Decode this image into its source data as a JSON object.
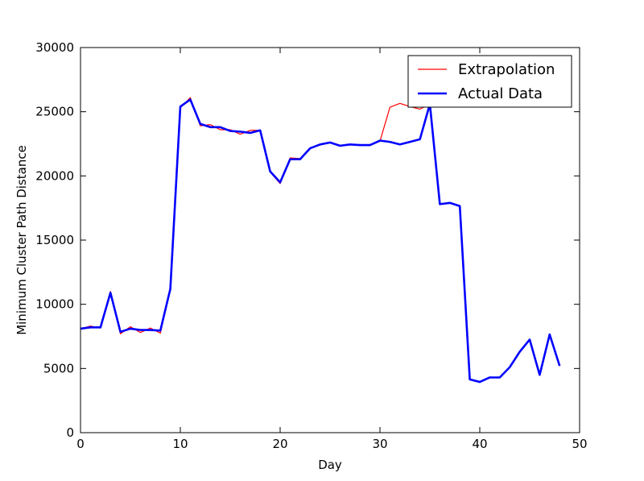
{
  "chart_data": {
    "type": "line",
    "title": "",
    "xlabel": "Day",
    "ylabel": "Minimum Cluster Path Distance",
    "xlim": [
      0,
      50
    ],
    "ylim": [
      0,
      30000
    ],
    "xticks": [
      0,
      10,
      20,
      30,
      40,
      50
    ],
    "yticks": [
      0,
      5000,
      10000,
      15000,
      20000,
      25000,
      30000
    ],
    "x_tick_labels": [
      "0",
      "10",
      "20",
      "30",
      "40",
      "50"
    ],
    "y_tick_labels": [
      "0",
      "5000",
      "10000",
      "15000",
      "20000",
      "25000",
      "30000"
    ],
    "grid": false,
    "legend_position": "top-right",
    "series": [
      {
        "name": "Extrapolation",
        "color": "#ff0000",
        "line_style": "thin",
        "x": [
          0,
          1,
          2,
          3,
          4,
          5,
          6,
          7,
          8,
          9,
          10,
          11,
          12,
          13,
          14,
          15,
          16,
          17,
          18,
          19,
          20,
          21,
          22,
          23,
          24,
          25,
          26,
          27,
          28,
          29,
          30,
          31,
          32,
          33,
          34,
          35,
          36,
          37,
          38,
          39,
          40,
          41,
          42,
          43,
          44,
          45,
          46,
          47,
          48
        ],
        "values": [
          8100,
          8300,
          8150,
          11000,
          7700,
          8250,
          7800,
          8150,
          7750,
          11200,
          25300,
          26100,
          23900,
          24000,
          23600,
          23600,
          23250,
          23550,
          23550,
          20300,
          19400,
          21400,
          21350,
          22150,
          22400,
          22600,
          22350,
          22450,
          22400,
          22400,
          22700,
          25350,
          25650,
          25400,
          25200,
          25600,
          17800,
          17900,
          17600,
          4150,
          3950,
          4300,
          4300,
          5100,
          6300,
          7250,
          4500,
          7650,
          5200
        ]
      },
      {
        "name": "Actual Data",
        "color": "#0000ff",
        "line_style": "thick",
        "x": [
          0,
          1,
          2,
          3,
          4,
          5,
          6,
          7,
          8,
          9,
          10,
          11,
          12,
          13,
          14,
          15,
          16,
          17,
          18,
          19,
          20,
          21,
          22,
          23,
          24,
          25,
          26,
          27,
          28,
          29,
          30,
          31,
          32,
          33,
          34,
          35,
          36,
          37,
          38,
          39,
          40,
          41,
          42,
          43,
          44,
          45,
          46,
          47,
          48
        ],
        "values": [
          8100,
          8200,
          8200,
          10900,
          7850,
          8100,
          8000,
          8000,
          7950,
          11200,
          25400,
          25950,
          24050,
          23800,
          23800,
          23500,
          23450,
          23350,
          23550,
          20350,
          19500,
          21300,
          21300,
          22150,
          22450,
          22600,
          22350,
          22450,
          22400,
          22400,
          22750,
          22650,
          22450,
          22650,
          22850,
          25600,
          17800,
          17900,
          17650,
          4150,
          3950,
          4300,
          4300,
          5100,
          6300,
          7250,
          4500,
          7650,
          5200
        ]
      }
    ]
  }
}
